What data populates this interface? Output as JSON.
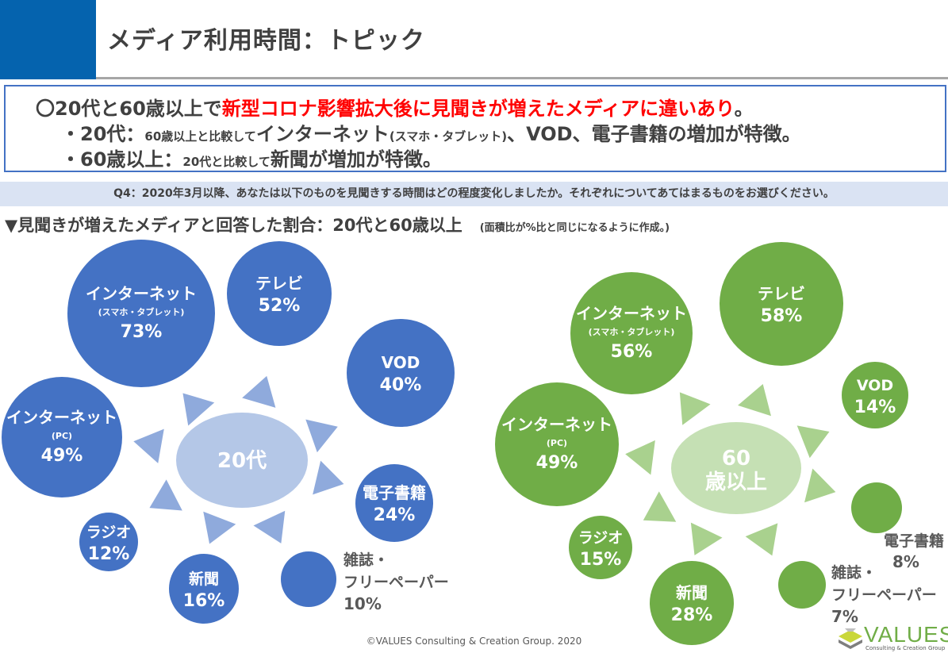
{
  "header": {
    "title": "メディア利用時間：トピック",
    "accent": "#0563ae"
  },
  "summary": {
    "line1_a": "〇20代と60歳以上で",
    "line1_b": "新型コロナ影響拡大後に見聞きが増えたメディアに違いあり",
    "line1_c": "。",
    "line2_a": "・20代：",
    "line2_b": "60歳以上と比較して",
    "line2_c": "インターネット",
    "line2_d": "(スマホ・タブレット)",
    "line2_e": "、VOD、電子書籍の増加が特徴。",
    "line3_a": "・60歳以上：",
    "line3_b": "20代と比較して",
    "line3_c": "新聞が増加が特徴。"
  },
  "question": "Q4：2020年3月以降、あなたは以下のものを見聞きする時間はどの程度変化しましたか。それぞれについてあてはまるものをお選びください。",
  "subtitle": "▼見聞きが増えたメディアと回答した割合：20代と60歳以上",
  "subtitle_note": "(面積比が%比と同じになるように作成。)",
  "chart_data": [
    {
      "type": "bubble",
      "center_label": "20代",
      "color": "#4472c4",
      "triangle_color": "#8faadc",
      "center_color": "#b4c7e7",
      "items": [
        {
          "label": "インターネット",
          "sublabel": "(スマホ・タブレット)",
          "value": 73
        },
        {
          "label": "テレビ",
          "value": 52
        },
        {
          "label": "VOD",
          "value": 40
        },
        {
          "label": "インターネット",
          "sublabel": "(PC)",
          "value": 49
        },
        {
          "label": "電子書籍",
          "value": 24
        },
        {
          "label": "ラジオ",
          "value": 12
        },
        {
          "label": "新聞",
          "value": 16
        },
        {
          "label": "雑誌・フリーペーパー",
          "value": 10
        }
      ]
    },
    {
      "type": "bubble",
      "center_label": "60歳以上",
      "color": "#70ad47",
      "triangle_color": "#a9d18e",
      "center_color": "#c5e0b4",
      "items": [
        {
          "label": "インターネット",
          "sublabel": "(スマホ・タブレット)",
          "value": 56
        },
        {
          "label": "テレビ",
          "value": 58
        },
        {
          "label": "VOD",
          "value": 14
        },
        {
          "label": "インターネット",
          "sublabel": "(PC)",
          "value": 49
        },
        {
          "label": "電子書籍",
          "value": 8
        },
        {
          "label": "ラジオ",
          "value": 15
        },
        {
          "label": "新聞",
          "value": 28
        },
        {
          "label": "雑誌・フリーペーパー",
          "value": 7
        }
      ]
    }
  ],
  "footer": "©VALUES Consulting & Creation Group. 2020",
  "logo": {
    "word": "VALUES",
    "tag": "Consulting & Creation Group"
  }
}
